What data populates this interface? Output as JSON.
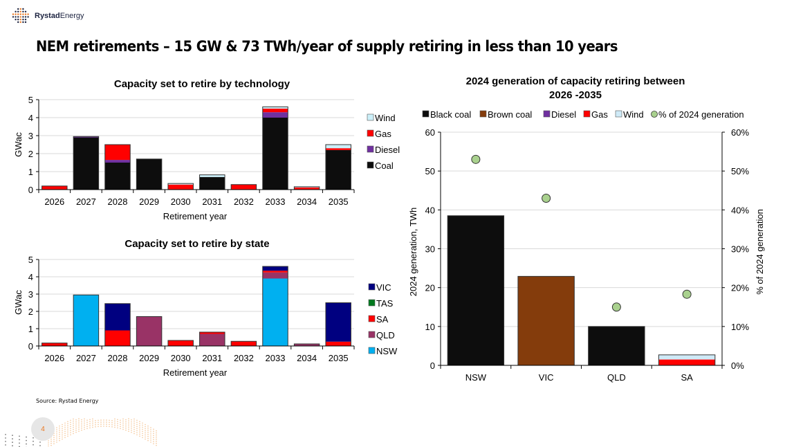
{
  "header": {
    "logo_name_bold": "Rystad",
    "logo_name_light": "Energy",
    "title": "NEM retirements – 15 GW & 73 TWh/year of supply retiring in less than 10 years"
  },
  "footer": {
    "source": "Source: Rystad Energy",
    "page_number": "4"
  },
  "chart_data": [
    {
      "type": "bar",
      "stacked": true,
      "title": "Capacity set to retire by technology",
      "xlabel": "Retirement year",
      "ylabel": "GWac",
      "ylim": [
        0,
        5
      ],
      "yticks": [
        0,
        1,
        2,
        3,
        4,
        5
      ],
      "grid": true,
      "legend_position": "right",
      "categories": [
        "2026",
        "2027",
        "2028",
        "2029",
        "2030",
        "2031",
        "2032",
        "2033",
        "2034",
        "2035"
      ],
      "series": [
        {
          "name": "Coal",
          "color": "#0d0d0d",
          "values": [
            0,
            2.9,
            1.5,
            1.7,
            0,
            0.7,
            0,
            4.0,
            0,
            2.2
          ]
        },
        {
          "name": "Diesel",
          "color": "#7030a0",
          "values": [
            0,
            0.05,
            0.15,
            0,
            0,
            0,
            0,
            0.3,
            0,
            0
          ]
        },
        {
          "name": "Gas",
          "color": "#ff0000",
          "values": [
            0.2,
            0,
            0.85,
            0,
            0.28,
            0,
            0.28,
            0.2,
            0.12,
            0.1
          ]
        },
        {
          "name": "Wind",
          "color": "#ccf0fa",
          "values": [
            0,
            0,
            0,
            0,
            0.06,
            0.12,
            0,
            0.1,
            0.04,
            0.2
          ]
        }
      ],
      "legend_order": [
        "Wind",
        "Gas",
        "Diesel",
        "Coal"
      ]
    },
    {
      "type": "bar",
      "stacked": true,
      "title": "Capacity set to retire by state",
      "xlabel": "Retirement year",
      "ylabel": "GWac",
      "ylim": [
        0,
        5
      ],
      "yticks": [
        0,
        1,
        2,
        3,
        4,
        5
      ],
      "grid": true,
      "legend_position": "right",
      "categories": [
        "2026",
        "2027",
        "2028",
        "2029",
        "2030",
        "2031",
        "2032",
        "2033",
        "2034",
        "2035"
      ],
      "series": [
        {
          "name": "NSW",
          "color": "#00b0f0",
          "values": [
            0,
            2.95,
            0,
            0,
            0,
            0,
            0,
            3.9,
            0,
            0
          ]
        },
        {
          "name": "QLD",
          "color": "#993366",
          "values": [
            0,
            0,
            0,
            1.7,
            0,
            0.7,
            0,
            0.35,
            0.12,
            0
          ]
        },
        {
          "name": "SA",
          "color": "#ff0000",
          "values": [
            0.17,
            0,
            0.9,
            0,
            0.32,
            0.1,
            0.27,
            0.1,
            0,
            0.25
          ]
        },
        {
          "name": "TAS",
          "color": "#007a1f",
          "values": [
            0,
            0,
            0,
            0,
            0,
            0,
            0,
            0,
            0,
            0
          ]
        },
        {
          "name": "VIC",
          "color": "#000080",
          "values": [
            0,
            0,
            1.55,
            0,
            0,
            0,
            0,
            0.25,
            0,
            2.25
          ]
        }
      ],
      "legend_order": [
        "VIC",
        "TAS",
        "SA",
        "QLD",
        "NSW"
      ]
    },
    {
      "type": "bar",
      "stacked": true,
      "title": "2024 generation of capacity retiring between 2026 -2035",
      "xlabel": "",
      "ylabel": "2024 generation, TWh",
      "y2label": "% of 2024 generation",
      "ylim": [
        0,
        60
      ],
      "yticks": [
        0,
        10,
        20,
        30,
        40,
        50,
        60
      ],
      "y2lim": [
        0,
        60
      ],
      "y2ticks": [
        "0%",
        "10%",
        "20%",
        "30%",
        "40%",
        "50%",
        "60%"
      ],
      "grid": true,
      "legend_position": "top",
      "categories": [
        "NSW",
        "VIC",
        "QLD",
        "SA"
      ],
      "series": [
        {
          "name": "Black coal",
          "color": "#0d0d0d",
          "values": [
            38.5,
            0,
            10.0,
            0
          ]
        },
        {
          "name": "Brown coal",
          "color": "#843c0c",
          "values": [
            0,
            22.9,
            0,
            0
          ]
        },
        {
          "name": "Diesel",
          "color": "#7030a0",
          "values": [
            0,
            0,
            0,
            0
          ]
        },
        {
          "name": "Gas",
          "color": "#ff0000",
          "values": [
            0,
            0,
            0,
            1.5
          ]
        },
        {
          "name": "Wind",
          "color": "#cfeaf7",
          "values": [
            0,
            0,
            0,
            1.2
          ]
        }
      ],
      "scatter_series": {
        "name": "% of 2024 generation",
        "color": "#a9d18e",
        "axis": "right",
        "values": [
          53,
          43,
          15,
          18.3
        ]
      }
    }
  ]
}
